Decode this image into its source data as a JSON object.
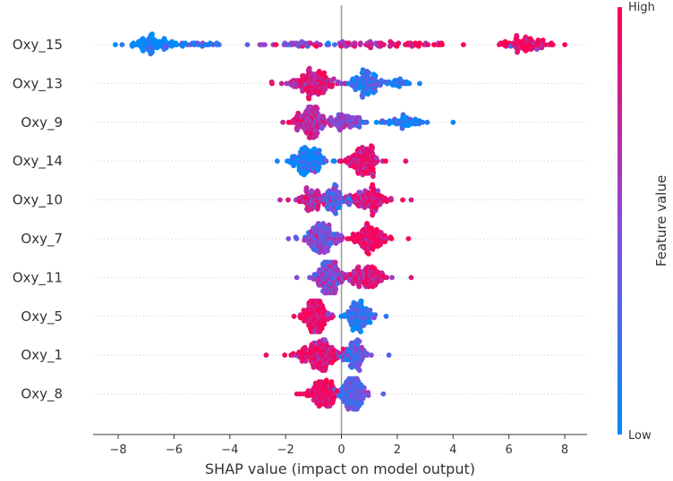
{
  "chart_data": {
    "type": "scatter",
    "subtype": "shap-beeswarm",
    "xlabel": "SHAP value (impact on model output)",
    "xlim": [
      -8.9,
      8.8
    ],
    "xticks": [
      -8,
      -6,
      -4,
      -2,
      0,
      2,
      4,
      6,
      8
    ],
    "xtick_labels": [
      "−8",
      "−6",
      "−4",
      "−2",
      "0",
      "2",
      "4",
      "6",
      "8"
    ],
    "zero_line": 0,
    "colorbar": {
      "title": "Feature value",
      "high_label": "High",
      "low_label": "Low",
      "low_color": "#008bfb",
      "high_color": "#ff0052"
    },
    "features": [
      {
        "name": "Oxy_15",
        "min": -8.1,
        "max": 8.0,
        "clusters": [
          {
            "center": -6.8,
            "width": 0.7,
            "weight": 0.28,
            "color": 0.0
          },
          {
            "center": -5.2,
            "width": 1.0,
            "weight": 0.08,
            "color": 0.1
          },
          {
            "center": -1.2,
            "width": 1.6,
            "weight": 0.12,
            "color": 0.5
          },
          {
            "center": 0.8,
            "width": 1.5,
            "weight": 0.14,
            "color": 0.75
          },
          {
            "center": 2.6,
            "width": 1.3,
            "weight": 0.1,
            "color": 0.92
          },
          {
            "center": 6.6,
            "width": 0.7,
            "weight": 0.28,
            "color": 0.97
          }
        ]
      },
      {
        "name": "Oxy_13",
        "min": -2.5,
        "max": 2.8,
        "clusters": [
          {
            "center": -1.0,
            "width": 0.7,
            "weight": 0.55,
            "color": 0.85
          },
          {
            "center": 0.8,
            "width": 0.5,
            "weight": 0.35,
            "color": 0.2
          },
          {
            "center": 2.0,
            "width": 0.6,
            "weight": 0.1,
            "color": 0.1
          }
        ]
      },
      {
        "name": "Oxy_9",
        "min": -2.1,
        "max": 4.0,
        "clusters": [
          {
            "center": -1.1,
            "width": 0.5,
            "weight": 0.5,
            "color": 0.75
          },
          {
            "center": 0.2,
            "width": 0.6,
            "weight": 0.3,
            "color": 0.5
          },
          {
            "center": 2.2,
            "width": 0.8,
            "weight": 0.2,
            "color": 0.05
          }
        ]
      },
      {
        "name": "Oxy_14",
        "min": -2.3,
        "max": 2.3,
        "clusters": [
          {
            "center": -1.2,
            "width": 0.6,
            "weight": 0.45,
            "color": 0.08
          },
          {
            "center": 0.8,
            "width": 0.5,
            "weight": 0.55,
            "color": 0.88
          }
        ]
      },
      {
        "name": "Oxy_10",
        "min": -2.2,
        "max": 2.5,
        "clusters": [
          {
            "center": -1.0,
            "width": 0.6,
            "weight": 0.35,
            "color": 0.7
          },
          {
            "center": -0.2,
            "width": 0.4,
            "weight": 0.25,
            "color": 0.3
          },
          {
            "center": 1.0,
            "width": 0.6,
            "weight": 0.4,
            "color": 0.82
          }
        ]
      },
      {
        "name": "Oxy_7",
        "min": -1.9,
        "max": 2.4,
        "clusters": [
          {
            "center": -0.7,
            "width": 0.5,
            "weight": 0.5,
            "color": 0.45
          },
          {
            "center": 1.0,
            "width": 0.6,
            "weight": 0.5,
            "color": 0.95
          }
        ]
      },
      {
        "name": "Oxy_11",
        "min": -1.6,
        "max": 2.5,
        "clusters": [
          {
            "center": -0.5,
            "width": 0.5,
            "weight": 0.55,
            "color": 0.5
          },
          {
            "center": 0.9,
            "width": 0.6,
            "weight": 0.45,
            "color": 0.82
          }
        ]
      },
      {
        "name": "Oxy_5",
        "min": -1.7,
        "max": 1.6,
        "clusters": [
          {
            "center": -0.9,
            "width": 0.4,
            "weight": 0.55,
            "color": 0.95
          },
          {
            "center": 0.6,
            "width": 0.4,
            "weight": 0.45,
            "color": 0.15
          }
        ]
      },
      {
        "name": "Oxy_1",
        "min": -2.7,
        "max": 1.7,
        "clusters": [
          {
            "center": -0.8,
            "width": 0.7,
            "weight": 0.6,
            "color": 0.9
          },
          {
            "center": 0.5,
            "width": 0.4,
            "weight": 0.4,
            "color": 0.3
          }
        ]
      },
      {
        "name": "Oxy_8",
        "min": -1.6,
        "max": 1.5,
        "clusters": [
          {
            "center": -0.7,
            "width": 0.5,
            "weight": 0.5,
            "color": 0.92
          },
          {
            "center": 0.4,
            "width": 0.4,
            "weight": 0.5,
            "color": 0.3
          }
        ]
      }
    ]
  }
}
